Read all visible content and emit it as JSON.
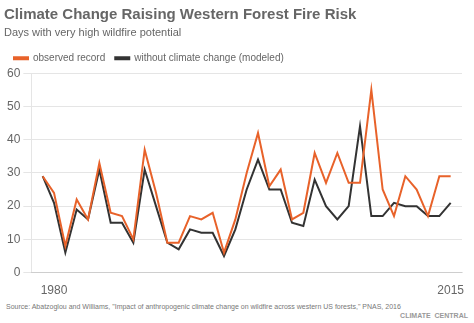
{
  "chart_data": {
    "type": "line",
    "title": "Climate Change Raising Western Forest Fire Risk",
    "subtitle": "Days with very high wildfire potential",
    "annotations": [
      "Source: Abatzoglou and Williams, \"Impact of anthropogenic climate change on wildfire across western US forests,\" PNAS, 2016",
      "CLIMATE  CENTRAL"
    ],
    "x": [
      1979,
      1980,
      1981,
      1982,
      1983,
      1984,
      1985,
      1986,
      1987,
      1988,
      1989,
      1990,
      1991,
      1992,
      1993,
      1994,
      1995,
      1996,
      1997,
      1998,
      1999,
      2000,
      2001,
      2002,
      2003,
      2004,
      2005,
      2006,
      2007,
      2008,
      2009,
      2010,
      2011,
      2012,
      2013,
      2014,
      2015
    ],
    "series": [
      {
        "name": "observed record",
        "color": "#E8622A",
        "values": [
          29,
          24,
          8,
          22,
          16,
          33,
          18,
          17,
          10,
          37,
          24,
          9,
          9,
          17,
          16,
          18,
          6,
          16,
          30,
          42,
          26,
          31,
          16,
          18,
          36,
          27,
          36,
          27,
          27,
          55,
          25,
          17,
          29,
          25,
          17,
          29,
          29
        ]
      },
      {
        "name": "without climate change (modeled)",
        "color": "#333333",
        "values": [
          29,
          21,
          6,
          19,
          16,
          31,
          15,
          15,
          9,
          31,
          20,
          9,
          7,
          13,
          12,
          12,
          5,
          13,
          25,
          34,
          25,
          25,
          15,
          14,
          28,
          20,
          16,
          20,
          44,
          17,
          17,
          21,
          20,
          20,
          17,
          17,
          21
        ]
      }
    ],
    "xlim": [
      1978,
      2016
    ],
    "xticks": [
      1980,
      2015
    ],
    "ylim": [
      0,
      60
    ],
    "yticks": [
      0,
      10,
      20,
      30,
      40,
      50,
      60
    ],
    "grid": "y",
    "legend": "upper left"
  }
}
